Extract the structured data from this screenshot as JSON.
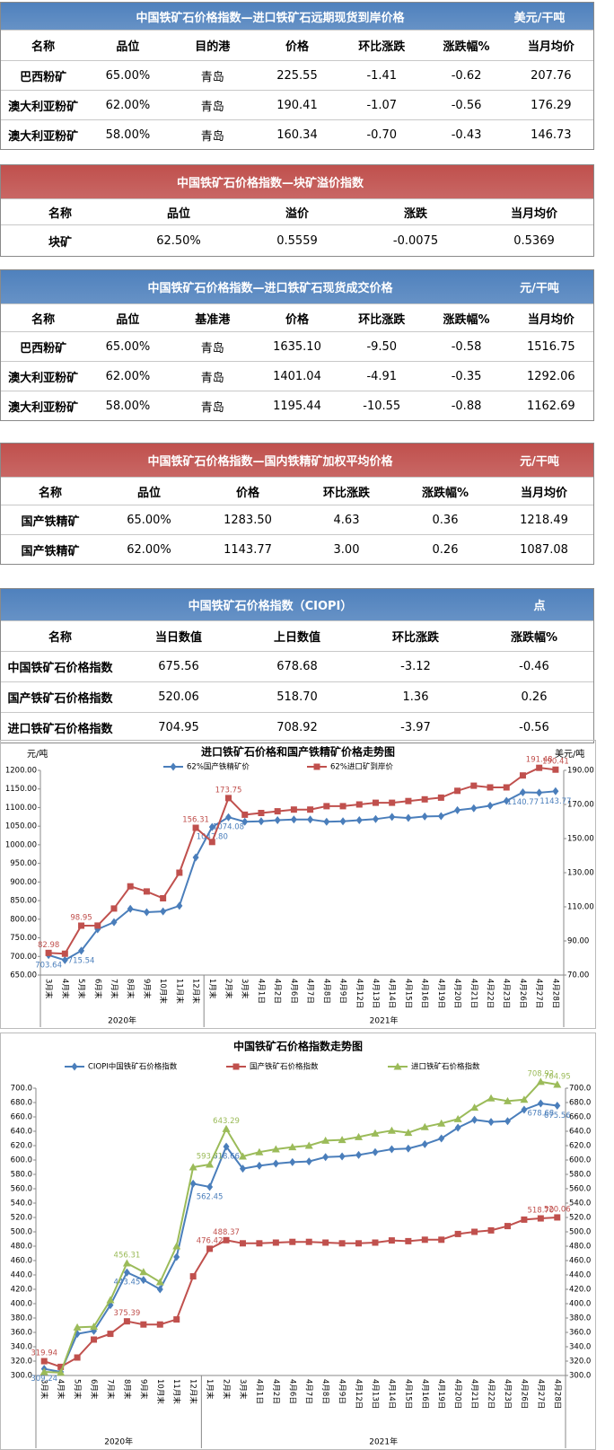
{
  "tables": [
    {
      "title": "中国铁矿石价格指数—进口铁矿石远期现货到岸价格",
      "unit": "美元/干吨",
      "color": "#4f81bd",
      "headers": [
        "名称",
        "品位",
        "目的港",
        "价格",
        "环比涨跌",
        "涨跌幅%",
        "当月均价"
      ],
      "rows": [
        [
          "巴西粉矿",
          "65.00%",
          "青岛",
          "225.55",
          "-1.41",
          "-0.62",
          "207.76"
        ],
        [
          "澳大利亚粉矿",
          "62.00%",
          "青岛",
          "190.41",
          "-1.07",
          "-0.56",
          "176.29"
        ],
        [
          "澳大利亚粉矿",
          "58.00%",
          "青岛",
          "160.34",
          "-0.70",
          "-0.43",
          "146.73"
        ]
      ]
    },
    {
      "title": "中国铁矿石价格指数—块矿溢价指数",
      "color": "#c0504d",
      "headers": [
        "名称",
        "品位",
        "溢价",
        "涨跌",
        "当月均价"
      ],
      "rows": [
        [
          "块矿",
          "62.50%",
          "0.5559",
          "-0.0075",
          "0.5369"
        ]
      ]
    },
    {
      "title": "中国铁矿石价格指数—进口铁矿石现货成交价格",
      "unit": "元/干吨",
      "color": "#4f81bd",
      "headers": [
        "名称",
        "品位",
        "基准港",
        "价格",
        "环比涨跌",
        "涨跌幅%",
        "当月均价"
      ],
      "rows": [
        [
          "巴西粉矿",
          "65.00%",
          "青岛",
          "1635.10",
          "-9.50",
          "-0.58",
          "1516.75"
        ],
        [
          "澳大利亚粉矿",
          "62.00%",
          "青岛",
          "1401.04",
          "-4.91",
          "-0.35",
          "1292.06"
        ],
        [
          "澳大利亚粉矿",
          "58.00%",
          "青岛",
          "1195.44",
          "-10.55",
          "-0.88",
          "1162.69"
        ]
      ]
    },
    {
      "title": "中国铁矿石价格指数—国内铁精矿加权平均价格",
      "unit": "元/干吨",
      "color": "#c0504d",
      "headers": [
        "名称",
        "品位",
        "价格",
        "环比涨跌",
        "涨跌幅%",
        "当月均价"
      ],
      "rows": [
        [
          "国产铁精矿",
          "65.00%",
          "1283.50",
          "4.63",
          "0.36",
          "1218.49"
        ],
        [
          "国产铁精矿",
          "62.00%",
          "1143.77",
          "3.00",
          "0.26",
          "1087.08"
        ]
      ]
    },
    {
      "title": "中国铁矿石价格指数（CIOPI）",
      "unit": "点",
      "color": "#4f81bd",
      "headers": [
        "名称",
        "当日数值",
        "上日数值",
        "环比涨跌",
        "涨跌幅%"
      ],
      "rows": [
        [
          "中国铁矿石价格指数",
          "675.56",
          "678.68",
          "-3.12",
          "-0.46"
        ],
        [
          "国产铁矿石价格指数",
          "520.06",
          "518.70",
          "1.36",
          "0.26"
        ],
        [
          "进口铁矿石价格指数",
          "704.95",
          "708.92",
          "-3.97",
          "-0.56"
        ]
      ]
    }
  ],
  "chart_data": [
    {
      "type": "line",
      "title": "进口铁矿石价格和国产铁精矿价格走势图",
      "y_label": "元/吨",
      "y2_label": "美元/吨",
      "legend": "top",
      "grid": false,
      "categories": [
        "3月末",
        "4月末",
        "5月末",
        "6月末",
        "7月末",
        "8月末",
        "9月末",
        "10月末",
        "11月末",
        "12月末",
        "1月末",
        "2月末",
        "3月末",
        "4月1日",
        "4月2日",
        "4月6日",
        "4月7日",
        "4月8日",
        "4月9日",
        "4月12日",
        "4月13日",
        "4月14日",
        "4月15日",
        "4月16日",
        "4月19日",
        "4月20日",
        "4月21日",
        "4月22日",
        "4月23日",
        "4月26日",
        "4月27日",
        "4月28日"
      ],
      "x_groups": [
        {
          "label": "2020年",
          "count": 10
        },
        {
          "label": "2021年",
          "count": 22
        }
      ],
      "ylim": [
        650,
        1200
      ],
      "yticks": [
        {
          "value": 650,
          "label": "650.00"
        },
        {
          "value": 700,
          "label": "700.00"
        },
        {
          "value": 750,
          "label": "750.00"
        },
        {
          "value": 800,
          "label": "800.00"
        },
        {
          "value": 850,
          "label": "850.00"
        },
        {
          "value": 900,
          "label": "900.00"
        },
        {
          "value": 950,
          "label": "950.00"
        },
        {
          "value": 1000,
          "label": "1000.00"
        },
        {
          "value": 1050,
          "label": "1050.00"
        },
        {
          "value": 1100,
          "label": "1100.00"
        },
        {
          "value": 1150,
          "label": "1150.00"
        },
        {
          "value": 1200,
          "label": "1200.00"
        }
      ],
      "y2lim": [
        70,
        190
      ],
      "y2ticks": [
        {
          "value": 70,
          "label": "70.00"
        },
        {
          "value": 90,
          "label": "90.00"
        },
        {
          "value": 110,
          "label": "110.00"
        },
        {
          "value": 130,
          "label": "130.00"
        },
        {
          "value": 150,
          "label": "150.00"
        },
        {
          "value": 170,
          "label": "170.00"
        },
        {
          "value": 190,
          "label": "190.00"
        }
      ],
      "series": [
        {
          "name": "62%国产铁精矿价",
          "color": "#4a7ebb",
          "marker": "diamond",
          "label_side": "below",
          "values": [
            703.64,
            690,
            715.54,
            773,
            792,
            828,
            819,
            821,
            836,
            966,
            1047.8,
            1074.08,
            1062,
            1063,
            1066,
            1068,
            1068,
            1062,
            1063,
            1066,
            1069,
            1075,
            1072,
            1076,
            1077,
            1093,
            1098,
            1105,
            1118,
            1140.77,
            1140,
            1143.77
          ],
          "value_labels": [
            "703.64",
            null,
            "715.54",
            null,
            null,
            null,
            null,
            null,
            null,
            null,
            "1047.80",
            "1074.08",
            null,
            null,
            null,
            null,
            null,
            null,
            null,
            null,
            null,
            null,
            null,
            null,
            null,
            null,
            null,
            null,
            null,
            "1140.77",
            null,
            "1143.77"
          ]
        },
        {
          "name": "62%进口矿到岸价",
          "color": "#c0504d",
          "marker": "square",
          "axis": "y2",
          "label_side": "above",
          "values": [
            82.98,
            82.5,
            98.95,
            99,
            109,
            122,
            119,
            115,
            130,
            156.31,
            148,
            173.75,
            164,
            165,
            166,
            167,
            167,
            169,
            169,
            170,
            171,
            171,
            172,
            173,
            174,
            178,
            181,
            180,
            180,
            187,
            191.48,
            190.41
          ],
          "value_labels": [
            "82.98",
            null,
            "98.95",
            null,
            null,
            null,
            null,
            null,
            null,
            "156.31",
            null,
            "173.75",
            null,
            null,
            null,
            null,
            null,
            null,
            null,
            null,
            null,
            null,
            null,
            null,
            null,
            null,
            null,
            null,
            null,
            null,
            "191.48",
            "190.41"
          ]
        }
      ]
    },
    {
      "type": "line",
      "title": "中国铁矿石价格指数走势图",
      "legend": "top",
      "grid": false,
      "categories": [
        "3月末",
        "4月末",
        "5月末",
        "6月末",
        "7月末",
        "8月末",
        "9月末",
        "10月末",
        "11月末",
        "12月末",
        "1月末",
        "2月末",
        "3月末",
        "4月1日",
        "4月2日",
        "4月6日",
        "4月7日",
        "4月8日",
        "4月9日",
        "4月12日",
        "4月13日",
        "4月14日",
        "4月15日",
        "4月16日",
        "4月19日",
        "4月20日",
        "4月21日",
        "4月22日",
        "4月23日",
        "4月26日",
        "4月27日",
        "4月28日"
      ],
      "x_groups": [
        {
          "label": "2020年",
          "count": 10
        },
        {
          "label": "2021年",
          "count": 22
        }
      ],
      "ylim": [
        300,
        700
      ],
      "yticks": [
        {
          "value": 300,
          "label": "300.0"
        },
        {
          "value": 320,
          "label": "320.0"
        },
        {
          "value": 340,
          "label": "340.0"
        },
        {
          "value": 360,
          "label": "360.0"
        },
        {
          "value": 380,
          "label": "380.0"
        },
        {
          "value": 400,
          "label": "400.0"
        },
        {
          "value": 420,
          "label": "420.0"
        },
        {
          "value": 440,
          "label": "440.0"
        },
        {
          "value": 460,
          "label": "460.0"
        },
        {
          "value": 480,
          "label": "480.0"
        },
        {
          "value": 500,
          "label": "500.0"
        },
        {
          "value": 520,
          "label": "520.0"
        },
        {
          "value": 540,
          "label": "540.0"
        },
        {
          "value": 560,
          "label": "560.0"
        },
        {
          "value": 580,
          "label": "580.0"
        },
        {
          "value": 600,
          "label": "600.0"
        },
        {
          "value": 620,
          "label": "620.0"
        },
        {
          "value": 640,
          "label": "640.0"
        },
        {
          "value": 660,
          "label": "660.0"
        },
        {
          "value": 680,
          "label": "680.0"
        },
        {
          "value": 700,
          "label": "700.0"
        }
      ],
      "y2lim": [
        300,
        700
      ],
      "y2ticks": [
        {
          "value": 300,
          "label": "300.0"
        },
        {
          "value": 320,
          "label": "320.0"
        },
        {
          "value": 340,
          "label": "340.0"
        },
        {
          "value": 360,
          "label": "360.0"
        },
        {
          "value": 380,
          "label": "380.0"
        },
        {
          "value": 400,
          "label": "400.0"
        },
        {
          "value": 420,
          "label": "420.0"
        },
        {
          "value": 440,
          "label": "440.0"
        },
        {
          "value": 460,
          "label": "460.0"
        },
        {
          "value": 480,
          "label": "480.0"
        },
        {
          "value": 500,
          "label": "500.0"
        },
        {
          "value": 520,
          "label": "520.0"
        },
        {
          "value": 540,
          "label": "540.0"
        },
        {
          "value": 560,
          "label": "560.0"
        },
        {
          "value": 580,
          "label": "580.0"
        },
        {
          "value": 600,
          "label": "600.0"
        },
        {
          "value": 620,
          "label": "620.0"
        },
        {
          "value": 640,
          "label": "640.0"
        },
        {
          "value": 660,
          "label": "660.0"
        },
        {
          "value": 680,
          "label": "680.0"
        },
        {
          "value": 700,
          "label": "700.0"
        }
      ],
      "series": [
        {
          "name": "CIOPI中国铁矿石价格指数",
          "color": "#4a7ebb",
          "marker": "diamond",
          "label_side": "below",
          "values": [
            309.24,
            305,
            358,
            362,
            398,
            443.45,
            433,
            420,
            465,
            567,
            562.45,
            618.66,
            588,
            592,
            595,
            597,
            598,
            604,
            605,
            607,
            611,
            615,
            616,
            622,
            630,
            645,
            656,
            653,
            654,
            670,
            678.68,
            675.56
          ],
          "value_labels": [
            "309.24",
            null,
            null,
            null,
            null,
            "443.45",
            null,
            null,
            null,
            null,
            "562.45",
            "618.66",
            null,
            null,
            null,
            null,
            null,
            null,
            null,
            null,
            null,
            null,
            null,
            null,
            null,
            null,
            null,
            null,
            null,
            null,
            "678.68",
            "675.56"
          ]
        },
        {
          "name": "国产铁矿石价格指数",
          "color": "#c0504d",
          "marker": "square",
          "label_side": "above",
          "values": [
            319.94,
            312,
            325,
            350,
            358,
            375.39,
            371,
            371,
            378,
            438,
            476.42,
            488.37,
            484,
            484,
            485,
            486,
            486,
            485,
            484,
            484,
            485,
            488,
            487,
            489,
            489,
            497,
            500,
            502,
            508,
            517,
            518.7,
            520.06
          ],
          "value_labels": [
            "319.94",
            null,
            null,
            null,
            null,
            "375.39",
            null,
            null,
            null,
            null,
            "476.42",
            "488.37",
            null,
            null,
            null,
            null,
            null,
            null,
            null,
            null,
            null,
            null,
            null,
            null,
            null,
            null,
            null,
            null,
            null,
            null,
            "518.70",
            "520.06"
          ]
        },
        {
          "name": "进口铁矿石价格指数",
          "color": "#9bbb59",
          "marker": "triangle",
          "label_side": "above",
          "values": [
            305,
            304,
            367,
            368,
            405,
            456.31,
            444,
            430,
            480,
            590,
            593.71,
            643.29,
            605,
            611,
            615,
            618,
            620,
            627,
            628,
            632,
            637,
            641,
            638,
            646,
            651,
            657,
            673,
            686,
            682,
            684,
            708.92,
            704.95
          ],
          "value_labels": [
            null,
            null,
            null,
            null,
            null,
            "456.31",
            null,
            null,
            null,
            null,
            "593.71",
            "643.29",
            null,
            null,
            null,
            null,
            null,
            null,
            null,
            null,
            null,
            null,
            null,
            null,
            null,
            null,
            null,
            null,
            null,
            null,
            "708.92",
            "704.95"
          ]
        }
      ]
    }
  ]
}
